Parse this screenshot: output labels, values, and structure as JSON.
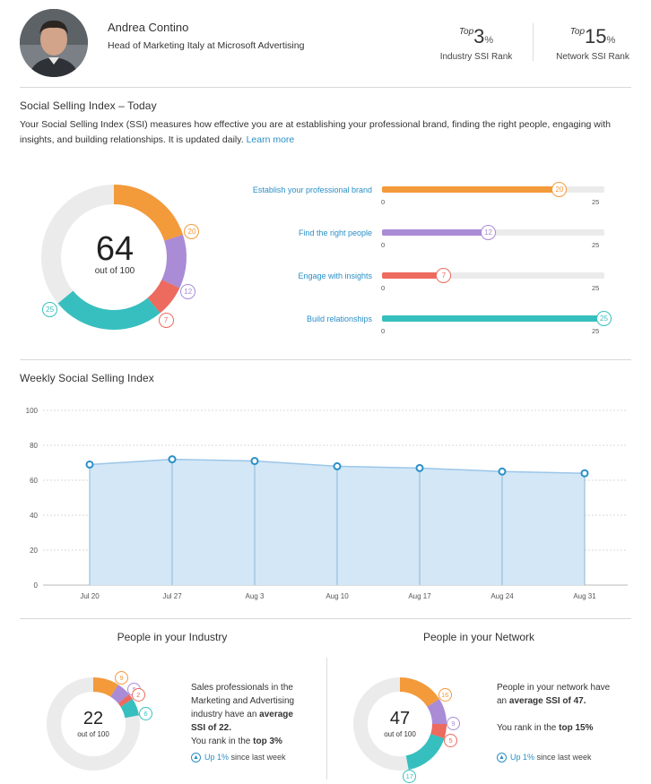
{
  "profile": {
    "name": "Andrea Contino",
    "headline": "Head of Marketing Italy at Microsoft Advertising"
  },
  "ranks": [
    {
      "top_label": "Top",
      "value": "3",
      "unit": "%",
      "label": "Industry SSI Rank"
    },
    {
      "top_label": "Top",
      "value": "15",
      "unit": "%",
      "label": "Network SSI Rank"
    }
  ],
  "ssi": {
    "title": "Social Selling Index – Today",
    "description": "Your Social Selling Index (SSI) measures how effective you are at establishing your professional brand, finding the right people, engaging with insights, and building relationships. It is updated daily.",
    "learn_more": "Learn more",
    "score": "64",
    "out_of": "out of 100",
    "components": [
      {
        "label": "Establish your professional brand",
        "value": 20,
        "max": 25,
        "color": "#f39a3b"
      },
      {
        "label": "Find the right people",
        "value": 12,
        "max": 25,
        "color": "#a98bd6"
      },
      {
        "label": "Engage with insights",
        "value": 7,
        "max": 25,
        "color": "#ec6a5e"
      },
      {
        "label": "Build relationships",
        "value": 25,
        "max": 25,
        "color": "#37bfbf"
      }
    ],
    "scale_min": "0",
    "scale_max": "25"
  },
  "weekly": {
    "title": "Weekly Social Selling Index"
  },
  "chart_data": {
    "type": "area",
    "title": "Weekly Social Selling Index",
    "x": [
      "Jul 20",
      "Jul 27",
      "Aug 3",
      "Aug 10",
      "Aug 17",
      "Aug 24",
      "Aug 31"
    ],
    "values": [
      69,
      72,
      71,
      68,
      67,
      65,
      64
    ],
    "yticks": [
      "0",
      "20",
      "40",
      "60",
      "80",
      "100"
    ],
    "ylim": [
      0,
      100
    ],
    "grid": true,
    "color": "#2a8fc6",
    "fill_color": "#d3e7f7"
  },
  "industry": {
    "title": "People in your Industry",
    "score": "22",
    "out_of": "out of 100",
    "components": [
      9,
      5,
      2,
      6
    ],
    "text_plain_1": "Sales professionals in the Marketing and Advertising industry have an",
    "text_bold_1": "average SSI of 22.",
    "text_plain_2": "You rank in the",
    "text_bold_2": "top 3%",
    "up_value": "Up 1%",
    "up_suffix": "since last week"
  },
  "network": {
    "title": "People in your Network",
    "score": "47",
    "out_of": "out of 100",
    "components": [
      16,
      9,
      5,
      17
    ],
    "text_plain_1": "People in your network have an",
    "text_bold_1": "average SSI of 47.",
    "text_plain_2": "You rank in the",
    "text_bold_2": "top 15%",
    "up_value": "Up 1%",
    "up_suffix": "since last week"
  }
}
